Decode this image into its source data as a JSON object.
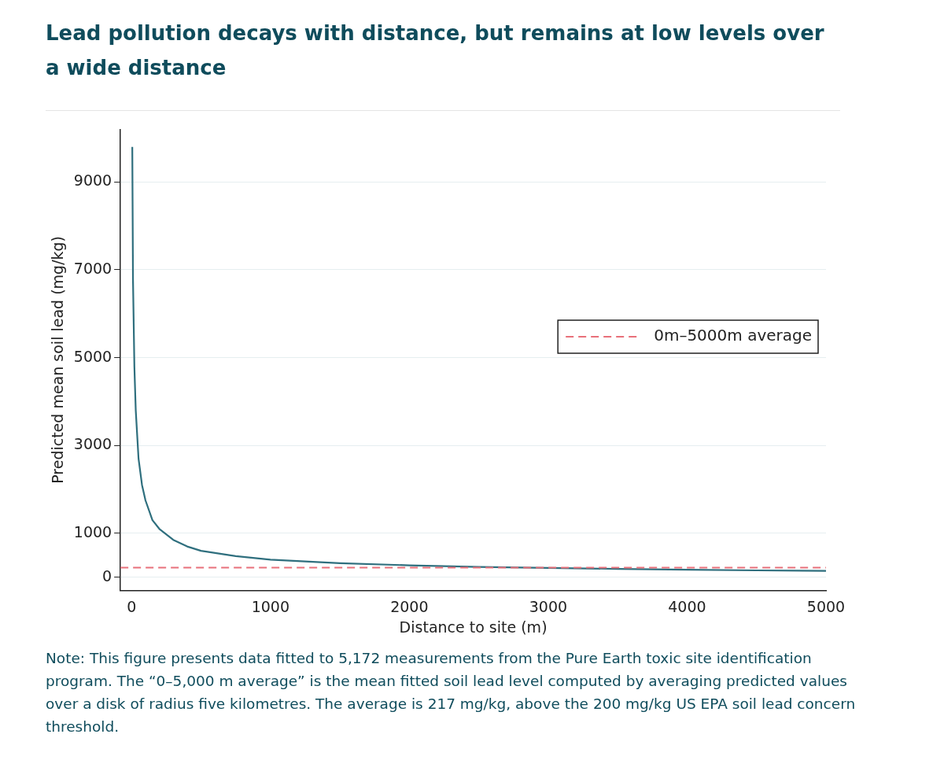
{
  "chart_data": {
    "type": "line",
    "title": "Lead pollution decays with distance, but remains at low levels over a wide distance",
    "xlabel": "Distance to site (m)",
    "ylabel": "Predicted mean soil lead (mg/kg)",
    "x": [
      5,
      10,
      20,
      30,
      50,
      75,
      100,
      150,
      200,
      300,
      400,
      500,
      750,
      1000,
      1500,
      2000,
      2500,
      3000,
      3500,
      4000,
      4500,
      5000
    ],
    "series": [
      {
        "color": "#2f6f7e",
        "values": [
          9800,
          6800,
          4800,
          3800,
          2700,
          2100,
          1750,
          1300,
          1100,
          850,
          700,
          600,
          480,
          400,
          320,
          270,
          235,
          210,
          190,
          170,
          155,
          145
        ]
      }
    ],
    "xlim": [
      -80,
      5000
    ],
    "xticks": [
      0,
      1000,
      2000,
      3000,
      4000,
      5000
    ],
    "ylim": [
      -300,
      10200
    ],
    "yticks": [
      0,
      1000,
      3000,
      5000,
      7000,
      9000
    ],
    "grid": "y",
    "legend": "right",
    "marker": "none",
    "line_style": "solid",
    "ref_lines": [
      {
        "axis": "y",
        "value": 217,
        "label": "0m–5000m average",
        "color": "#e8707a",
        "line_style": "dashed"
      }
    ],
    "annotations": [
      "Note: This figure presents data fitted to 5,172 measurements from the Pure Earth toxic site identification program. The “0–5,000 m average” is the mean fitted soil lead level computed by averaging predicted values over a disk of radius five kilometres. The average is 217 mg/kg, above the 200 mg/kg US EPA soil lead concern threshold."
    ]
  }
}
